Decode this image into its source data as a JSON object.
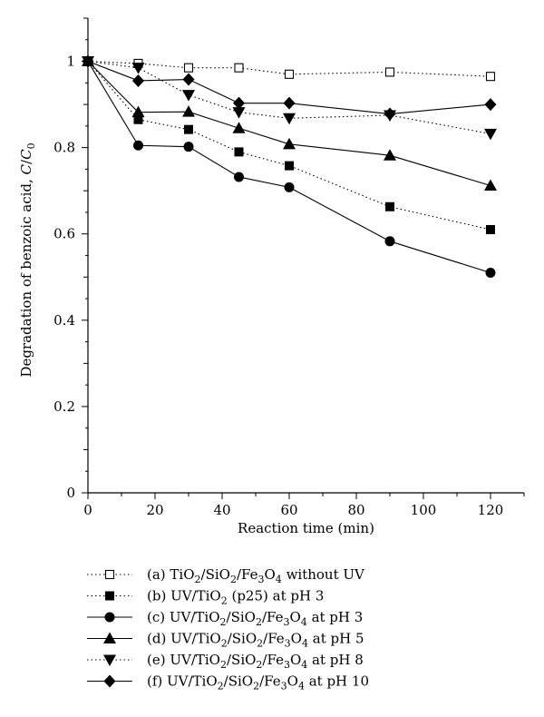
{
  "chart_data": {
    "type": "line",
    "title": "",
    "xlabel": "Reaction time (min)",
    "ylabel": "Degradation of benzoic acid, C/C0",
    "ylabel_parts": [
      {
        "text": "Degradation of benzoic acid, ",
        "style": "normal",
        "shift": "none"
      },
      {
        "text": "C",
        "style": "italic",
        "shift": "none"
      },
      {
        "text": "/",
        "style": "normal",
        "shift": "none"
      },
      {
        "text": "C",
        "style": "italic",
        "shift": "none"
      },
      {
        "text": "0",
        "style": "normal",
        "shift": "sub"
      }
    ],
    "xlim": [
      0,
      130
    ],
    "ylim": [
      0,
      1.1
    ],
    "xticks": [
      0,
      20,
      40,
      60,
      80,
      100,
      120
    ],
    "yticks": [
      0,
      0.2,
      0.4,
      0.6,
      0.8,
      1
    ],
    "xtick_labels": [
      "0",
      "20",
      "40",
      "60",
      "80",
      "100",
      "120"
    ],
    "ytick_labels": [
      "0",
      "0.2",
      "0.4",
      "0.6",
      "0.8",
      "1"
    ],
    "grid": false,
    "legend_position": "below",
    "series": [
      {
        "name": "(a) TiO2/SiO2/Fe3O4 without UV",
        "name_parts": [
          {
            "text": "(a) TiO",
            "shift": "none"
          },
          {
            "text": "2",
            "shift": "sub"
          },
          {
            "text": "/SiO",
            "shift": "none"
          },
          {
            "text": "2",
            "shift": "sub"
          },
          {
            "text": "/Fe",
            "shift": "none"
          },
          {
            "text": "3",
            "shift": "sub"
          },
          {
            "text": "O",
            "shift": "none"
          },
          {
            "text": "4",
            "shift": "sub"
          },
          {
            "text": " without UV",
            "shift": "none"
          }
        ],
        "marker": "square-open",
        "line": "dotted",
        "x": [
          0,
          15,
          30,
          45,
          60,
          90,
          120
        ],
        "y": [
          1.0,
          0.995,
          0.985,
          0.985,
          0.97,
          0.975,
          0.965
        ]
      },
      {
        "name": "(b) UV/TiO2 (p25) at pH 3",
        "name_parts": [
          {
            "text": "(b) UV/TiO",
            "shift": "none"
          },
          {
            "text": "2",
            "shift": "sub"
          },
          {
            "text": " (p25) at pH 3",
            "shift": "none"
          }
        ],
        "marker": "square",
        "line": "dotted",
        "x": [
          0,
          15,
          30,
          45,
          60,
          90,
          120
        ],
        "y": [
          1.0,
          0.865,
          0.842,
          0.79,
          0.758,
          0.663,
          0.61
        ]
      },
      {
        "name": "(c) UV/TiO2/SiO2/Fe3O4 at pH 3",
        "name_parts": [
          {
            "text": "(c) UV/TiO",
            "shift": "none"
          },
          {
            "text": "2",
            "shift": "sub"
          },
          {
            "text": "/SiO",
            "shift": "none"
          },
          {
            "text": "2",
            "shift": "sub"
          },
          {
            "text": "/Fe",
            "shift": "none"
          },
          {
            "text": "3",
            "shift": "sub"
          },
          {
            "text": "O",
            "shift": "none"
          },
          {
            "text": "4",
            "shift": "sub"
          },
          {
            "text": " at pH 3",
            "shift": "none"
          }
        ],
        "marker": "circle",
        "line": "solid",
        "x": [
          0,
          15,
          30,
          45,
          60,
          90,
          120
        ],
        "y": [
          1.0,
          0.805,
          0.802,
          0.732,
          0.708,
          0.583,
          0.51
        ]
      },
      {
        "name": "(d) UV/TiO2/SiO2/Fe3O4 at pH 5",
        "name_parts": [
          {
            "text": "(d) UV/TiO",
            "shift": "none"
          },
          {
            "text": "2",
            "shift": "sub"
          },
          {
            "text": "/SiO",
            "shift": "none"
          },
          {
            "text": "2",
            "shift": "sub"
          },
          {
            "text": "/Fe",
            "shift": "none"
          },
          {
            "text": "3",
            "shift": "sub"
          },
          {
            "text": "O",
            "shift": "none"
          },
          {
            "text": "4",
            "shift": "sub"
          },
          {
            "text": " at pH 5",
            "shift": "none"
          }
        ],
        "marker": "triangle-up",
        "line": "solid",
        "x": [
          0,
          15,
          30,
          45,
          60,
          90,
          120
        ],
        "y": [
          1.0,
          0.882,
          0.883,
          0.845,
          0.808,
          0.782,
          0.712
        ]
      },
      {
        "name": "(e) UV/TiO2/SiO2/Fe3O4 at pH 8",
        "name_parts": [
          {
            "text": "(e) UV/TiO",
            "shift": "none"
          },
          {
            "text": "2",
            "shift": "sub"
          },
          {
            "text": "/SiO",
            "shift": "none"
          },
          {
            "text": "2",
            "shift": "sub"
          },
          {
            "text": "/Fe",
            "shift": "none"
          },
          {
            "text": "3",
            "shift": "sub"
          },
          {
            "text": "O",
            "shift": "none"
          },
          {
            "text": "4",
            "shift": "sub"
          },
          {
            "text": " at pH 8",
            "shift": "none"
          }
        ],
        "marker": "triangle-down",
        "line": "dotted",
        "x": [
          0,
          15,
          30,
          45,
          60,
          90,
          120
        ],
        "y": [
          1.0,
          0.985,
          0.922,
          0.882,
          0.868,
          0.875,
          0.832
        ]
      },
      {
        "name": "(f) UV/TiO2/SiO2/Fe3O4 at pH 10",
        "name_parts": [
          {
            "text": "(f) UV/TiO",
            "shift": "none"
          },
          {
            "text": "2",
            "shift": "sub"
          },
          {
            "text": "/SiO",
            "shift": "none"
          },
          {
            "text": "2",
            "shift": "sub"
          },
          {
            "text": "/Fe",
            "shift": "none"
          },
          {
            "text": "3",
            "shift": "sub"
          },
          {
            "text": "O",
            "shift": "none"
          },
          {
            "text": "4",
            "shift": "sub"
          },
          {
            "text": " at pH 10",
            "shift": "none"
          }
        ],
        "marker": "diamond",
        "line": "solid",
        "x": [
          0,
          15,
          30,
          45,
          60,
          90,
          120
        ],
        "y": [
          1.0,
          0.955,
          0.958,
          0.903,
          0.903,
          0.878,
          0.9
        ]
      }
    ]
  }
}
